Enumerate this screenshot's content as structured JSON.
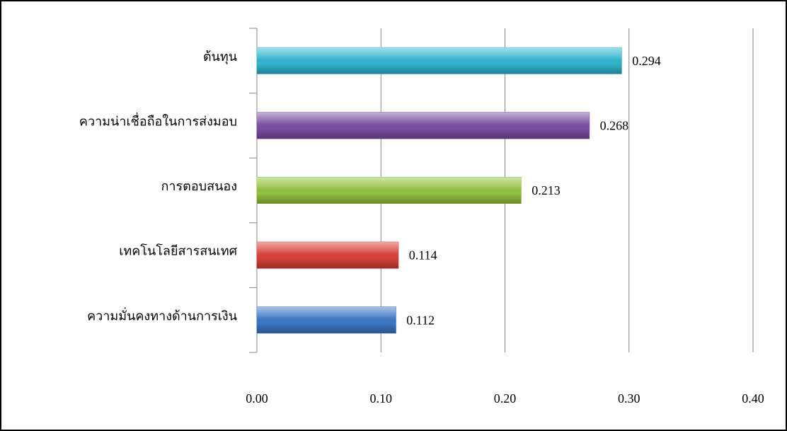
{
  "chart_data": {
    "type": "bar",
    "orientation": "horizontal",
    "categories": [
      "ต้นทุน",
      "ความน่าเชื่อถือในการส่งมอบ",
      "การตอบสนอง",
      "เทคโนโลยีสารสนเทศ",
      "ความมั่นคงทางด้านการเงิน"
    ],
    "values": [
      0.294,
      0.268,
      0.213,
      0.114,
      0.112
    ],
    "colors": [
      "#31b6cf",
      "#7b4fa3",
      "#93c23f",
      "#d8403a",
      "#3b78c7"
    ],
    "xlim": [
      0,
      0.4
    ],
    "xticks": [
      {
        "value": 0,
        "label": "0.00"
      },
      {
        "value": 0.1,
        "label": "0.10"
      },
      {
        "value": 0.2,
        "label": "0.20"
      },
      {
        "value": 0.3,
        "label": "0.30"
      },
      {
        "value": 0.4,
        "label": "0.40"
      }
    ],
    "grid": true
  }
}
